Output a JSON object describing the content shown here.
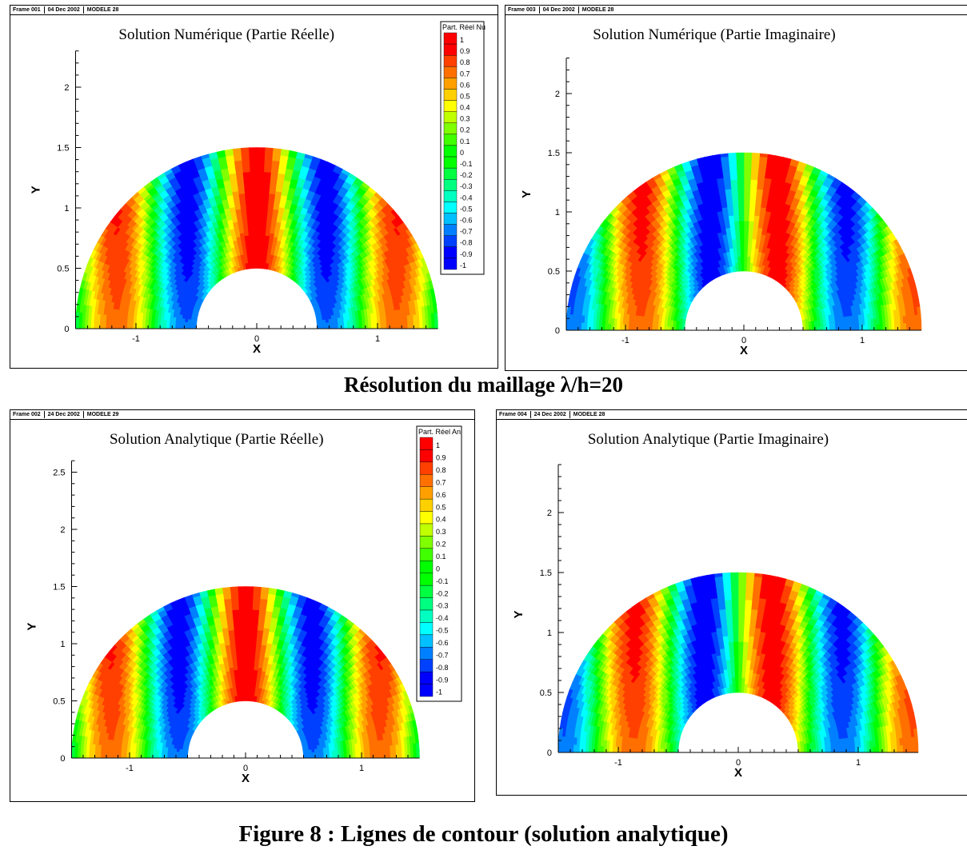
{
  "resolution_caption": "Résolution du maillage λ/h=20",
  "figure_caption": "Figure 8 :  Lignes de contour (solution analytique)",
  "colormap": [
    "#0000ff",
    "#0040ff",
    "#0080ff",
    "#00c0ff",
    "#00ffff",
    "#00ffc0",
    "#00ff80",
    "#00ff40",
    "#00ff00",
    "#40ff00",
    "#80ff00",
    "#c0ff00",
    "#ffff00",
    "#ffd000",
    "#ffa000",
    "#ff7000",
    "#ff4000",
    "#ff0000"
  ],
  "panels": [
    {
      "id": "p1",
      "header": {
        "frame": "Frame 001",
        "date": "04 Dec 2002",
        "model": "MODELE 28"
      },
      "title": "Solution Numérique (Partie Réelle)",
      "xlabel": "X",
      "ylabel": "Y",
      "legend": {
        "title": "Part. Réel Nu",
        "levels": [
          "1",
          "0.9",
          "0.8",
          "0.7",
          "0.6",
          "0.5",
          "0.4",
          "0.3",
          "0.2",
          "0.1",
          "0",
          "-0.1",
          "-0.2",
          "-0.3",
          "-0.4",
          "-0.5",
          "-0.6",
          "-0.7",
          "-0.8",
          "-0.9",
          "-1"
        ]
      }
    },
    {
      "id": "p2",
      "header": {
        "frame": "Frame 003",
        "date": "04 Dec 2002",
        "model": "MODELE 28"
      },
      "title": "Solution Numérique (Partie Imaginaire)",
      "xlabel": "X",
      "ylabel": "Y",
      "legend": null
    },
    {
      "id": "p3",
      "header": {
        "frame": "Frame 002",
        "date": "24 Dec 2002",
        "model": "MODELE 29"
      },
      "title": "Solution Analytique (Partie Réelle)",
      "xlabel": "X",
      "ylabel": "Y",
      "legend": {
        "title": "Part. Réel An",
        "levels": [
          "1",
          "0.9",
          "0.8",
          "0.7",
          "0.6",
          "0.5",
          "0.4",
          "0.3",
          "0.2",
          "0.1",
          "0",
          "-0.1",
          "-0.2",
          "-0.3",
          "-0.4",
          "-0.5",
          "-0.6",
          "-0.7",
          "-0.8",
          "-0.9",
          "-1"
        ]
      }
    },
    {
      "id": "p4",
      "header": {
        "frame": "Frame 004",
        "date": "24 Dec 2002",
        "model": "MODELE 28"
      },
      "title": "Solution Analytique (Partie Imaginaire)",
      "xlabel": "X",
      "ylabel": "Y",
      "legend": null
    }
  ],
  "chart_data": [
    {
      "type": "heatmap",
      "title": "Solution Numérique (Partie Réelle)",
      "xlabel": "X",
      "ylabel": "Y",
      "xlim": [
        -1.5,
        1.5
      ],
      "ylim": [
        0,
        2.3
      ],
      "xticks": [
        -1,
        0,
        1
      ],
      "yticks": [
        0,
        0.5,
        1,
        1.5,
        2
      ],
      "domain": {
        "shape": "half-annulus",
        "inner_radius": 0.5,
        "outer_radius": 1.5
      },
      "field": "real",
      "wavenumber": 5.4,
      "legend_levels": [
        1,
        0.9,
        0.8,
        0.7,
        0.6,
        0.5,
        0.4,
        0.3,
        0.2,
        0.1,
        0,
        -0.1,
        -0.2,
        -0.3,
        -0.4,
        -0.5,
        -0.6,
        -0.7,
        -0.8,
        -0.9,
        -1
      ]
    },
    {
      "type": "heatmap",
      "title": "Solution Numérique (Partie Imaginaire)",
      "xlabel": "X",
      "ylabel": "Y",
      "xlim": [
        -1.5,
        1.5
      ],
      "ylim": [
        0,
        2.3
      ],
      "xticks": [
        -1,
        0,
        1
      ],
      "yticks": [
        0,
        0.5,
        1,
        1.5,
        2
      ],
      "domain": {
        "shape": "half-annulus",
        "inner_radius": 0.5,
        "outer_radius": 1.5
      },
      "field": "imag",
      "wavenumber": 5.4
    },
    {
      "type": "heatmap",
      "title": "Solution Analytique (Partie Réelle)",
      "xlabel": "X",
      "ylabel": "Y",
      "xlim": [
        -1.5,
        1.5
      ],
      "ylim": [
        0,
        2.6
      ],
      "xticks": [
        -1,
        0,
        1
      ],
      "yticks": [
        0,
        0.5,
        1,
        1.5,
        2,
        2.5
      ],
      "domain": {
        "shape": "half-annulus",
        "inner_radius": 0.5,
        "outer_radius": 1.5
      },
      "field": "real",
      "wavenumber": 5.4,
      "legend_levels": [
        1,
        0.9,
        0.8,
        0.7,
        0.6,
        0.5,
        0.4,
        0.3,
        0.2,
        0.1,
        0,
        -0.1,
        -0.2,
        -0.3,
        -0.4,
        -0.5,
        -0.6,
        -0.7,
        -0.8,
        -0.9,
        -1
      ]
    },
    {
      "type": "heatmap",
      "title": "Solution Analytique (Partie Imaginaire)",
      "xlabel": "X",
      "ylabel": "Y",
      "xlim": [
        -1.5,
        1.5
      ],
      "ylim": [
        0,
        2.4
      ],
      "xticks": [
        -1,
        0,
        1
      ],
      "yticks": [
        0,
        0.5,
        1,
        1.5,
        2
      ],
      "domain": {
        "shape": "half-annulus",
        "inner_radius": 0.5,
        "outer_radius": 1.5
      },
      "field": "imag",
      "wavenumber": 5.4
    }
  ]
}
